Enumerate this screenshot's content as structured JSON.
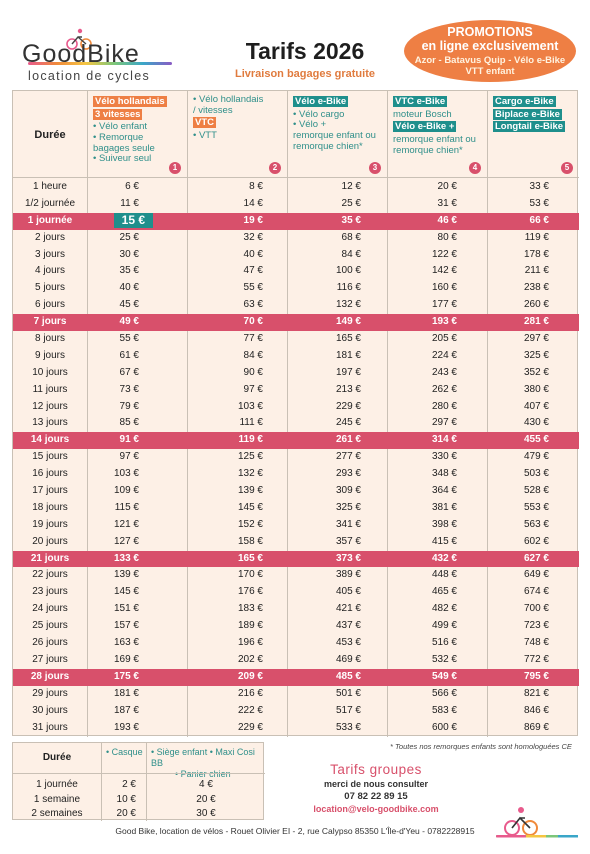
{
  "brand": {
    "name": "GoodBike",
    "tagline": "location de cycles"
  },
  "header": {
    "title": "Tarifs 2026",
    "subtitle": "Livraison bagages gratuite"
  },
  "promo": {
    "line1": "PROMOTIONS",
    "line2": "en ligne exclusivement",
    "line3": "Azor - Batavus Quip - Vélo e-Bike",
    "line4": "VTT enfant"
  },
  "table": {
    "duration_header": "Durée",
    "columns": [
      {
        "num": "1",
        "items": [
          {
            "text": "Vélo hollandais",
            "style": "orange"
          },
          {
            "text": "3 vitesses",
            "style": "orange"
          },
          {
            "text": "• Vélo enfant",
            "style": "plain"
          },
          {
            "text": "• Remorque",
            "style": "plain"
          },
          {
            "text": "bagages seule",
            "style": "plain"
          },
          {
            "text": "• Suiveur seul",
            "style": "plain"
          }
        ]
      },
      {
        "num": "2",
        "items": [
          {
            "text": "",
            "style": "plain"
          },
          {
            "text": "• Vélo hollandais",
            "style": "plain"
          },
          {
            "text": "/ vitesses",
            "style": "plain"
          },
          {
            "text": "VTC",
            "style": "orange"
          },
          {
            "text": "• VTT",
            "style": "plain"
          }
        ]
      },
      {
        "num": "3",
        "items": [
          {
            "text": "Vélo e-Bike",
            "style": "teal"
          },
          {
            "text": "• Vélo cargo",
            "style": "plain"
          },
          {
            "text": "• Vélo +",
            "style": "plain"
          },
          {
            "text": "remorque enfant ou",
            "style": "plain"
          },
          {
            "text": "remorque chien*",
            "style": "plain"
          }
        ]
      },
      {
        "num": "4",
        "items": [
          {
            "text": "VTC e-Bike",
            "style": "teal"
          },
          {
            "text": "moteur Bosch",
            "style": "plain"
          },
          {
            "text": "Vélo e-Bike +",
            "style": "teal"
          },
          {
            "text": "remorque enfant ou",
            "style": "plain"
          },
          {
            "text": "remorque chien*",
            "style": "plain"
          }
        ]
      },
      {
        "num": "5",
        "items": [
          {
            "text": "Cargo e-Bike",
            "style": "teal"
          },
          {
            "text": "Biplace e-Bike",
            "style": "teal"
          },
          {
            "text": "Longtail e-Bike",
            "style": "teal"
          }
        ]
      }
    ],
    "rows": [
      {
        "d": "1 heure",
        "v": [
          "6 €",
          "8 €",
          "12 €",
          "20 €",
          "33 €"
        ],
        "hl": false
      },
      {
        "d": "1/2 journée",
        "v": [
          "11 €",
          "14 €",
          "25 €",
          "31 €",
          "53 €"
        ],
        "hl": false
      },
      {
        "d": "1 journée",
        "v": [
          "15 €",
          "19 €",
          "35 €",
          "46 €",
          "66 €"
        ],
        "hl": true
      },
      {
        "d": "2 jours",
        "v": [
          "25 €",
          "32 €",
          "68 €",
          "80 €",
          "119 €"
        ],
        "hl": false
      },
      {
        "d": "3 jours",
        "v": [
          "30 €",
          "40 €",
          "84 €",
          "122 €",
          "178 €"
        ],
        "hl": false
      },
      {
        "d": "4 jours",
        "v": [
          "35 €",
          "47 €",
          "100 €",
          "142 €",
          "211 €"
        ],
        "hl": false
      },
      {
        "d": "5 jours",
        "v": [
          "40 €",
          "55 €",
          "116 €",
          "160 €",
          "238 €"
        ],
        "hl": false
      },
      {
        "d": "6 jours",
        "v": [
          "45 €",
          "63 €",
          "132 €",
          "177 €",
          "260 €"
        ],
        "hl": false
      },
      {
        "d": "7 jours",
        "v": [
          "49 €",
          "70 €",
          "149 €",
          "193 €",
          "281 €"
        ],
        "hl": true
      },
      {
        "d": "8 jours",
        "v": [
          "55 €",
          "77 €",
          "165 €",
          "205 €",
          "297 €"
        ],
        "hl": false
      },
      {
        "d": "9 jours",
        "v": [
          "61 €",
          "84 €",
          "181 €",
          "224 €",
          "325 €"
        ],
        "hl": false
      },
      {
        "d": "10 jours",
        "v": [
          "67 €",
          "90 €",
          "197 €",
          "243 €",
          "352 €"
        ],
        "hl": false
      },
      {
        "d": "11 jours",
        "v": [
          "73 €",
          "97 €",
          "213 €",
          "262 €",
          "380 €"
        ],
        "hl": false
      },
      {
        "d": "12 jours",
        "v": [
          "79 €",
          "103 €",
          "229 €",
          "280 €",
          "407 €"
        ],
        "hl": false
      },
      {
        "d": "13 jours",
        "v": [
          "85 €",
          "111 €",
          "245 €",
          "297 €",
          "430 €"
        ],
        "hl": false
      },
      {
        "d": "14 jours",
        "v": [
          "91 €",
          "119 €",
          "261 €",
          "314 €",
          "455 €"
        ],
        "hl": true
      },
      {
        "d": "15 jours",
        "v": [
          "97 €",
          "125 €",
          "277 €",
          "330 €",
          "479 €"
        ],
        "hl": false
      },
      {
        "d": "16 jours",
        "v": [
          "103 €",
          "132 €",
          "293 €",
          "348 €",
          "503 €"
        ],
        "hl": false
      },
      {
        "d": "17 jours",
        "v": [
          "109 €",
          "139 €",
          "309 €",
          "364 €",
          "528 €"
        ],
        "hl": false
      },
      {
        "d": "18 jours",
        "v": [
          "115 €",
          "145 €",
          "325 €",
          "381 €",
          "553 €"
        ],
        "hl": false
      },
      {
        "d": "19 jours",
        "v": [
          "121 €",
          "152 €",
          "341 €",
          "398 €",
          "563 €"
        ],
        "hl": false
      },
      {
        "d": "20 jours",
        "v": [
          "127 €",
          "158 €",
          "357 €",
          "415 €",
          "602 €"
        ],
        "hl": false
      },
      {
        "d": "21 jours",
        "v": [
          "133 €",
          "165 €",
          "373 €",
          "432 €",
          "627 €"
        ],
        "hl": true
      },
      {
        "d": "22 jours",
        "v": [
          "139 €",
          "170 €",
          "389 €",
          "448 €",
          "649 €"
        ],
        "hl": false
      },
      {
        "d": "23 jours",
        "v": [
          "145 €",
          "176 €",
          "405 €",
          "465 €",
          "674 €"
        ],
        "hl": false
      },
      {
        "d": "24 jours",
        "v": [
          "151 €",
          "183 €",
          "421 €",
          "482 €",
          "700 €"
        ],
        "hl": false
      },
      {
        "d": "25 jours",
        "v": [
          "157 €",
          "189 €",
          "437 €",
          "499 €",
          "723 €"
        ],
        "hl": false
      },
      {
        "d": "26 jours",
        "v": [
          "163 €",
          "196 €",
          "453 €",
          "516 €",
          "748 €"
        ],
        "hl": false
      },
      {
        "d": "27 jours",
        "v": [
          "169 €",
          "202 €",
          "469 €",
          "532 €",
          "772 €"
        ],
        "hl": false
      },
      {
        "d": "28 jours",
        "v": [
          "175 €",
          "209 €",
          "485 €",
          "549 €",
          "795 €"
        ],
        "hl": true
      },
      {
        "d": "29 jours",
        "v": [
          "181 €",
          "216 €",
          "501 €",
          "566 €",
          "821 €"
        ],
        "hl": false
      },
      {
        "d": "30 jours",
        "v": [
          "187 €",
          "222 €",
          "517 €",
          "583 €",
          "846 €"
        ],
        "hl": false
      },
      {
        "d": "31 jours",
        "v": [
          "193 €",
          "229 €",
          "533 €",
          "600 €",
          "869 €"
        ],
        "hl": false
      }
    ]
  },
  "note": "* Toutes nos remorques enfants sont homologuées CE",
  "accessories": {
    "duration_header": "Durée",
    "h1": "• Casque",
    "h2a": "• Siège enfant • Maxi Cosi BB",
    "h2b": "• Panier chien",
    "rows": [
      {
        "d": "1 journée",
        "a": "2 €",
        "b": "4 €"
      },
      {
        "d": "1 semaine",
        "a": "10 €",
        "b": "20 €"
      },
      {
        "d": "2 semaines",
        "a": "20 €",
        "b": "30 €"
      }
    ]
  },
  "groupes": {
    "title": "Tarifs groupes",
    "sub": "merci de nous consulter",
    "tel": "07 82 22 89 15",
    "mail": "location@velo-goodbike.com"
  },
  "footer": "Good Bike, location de vélos - Rouet Olivier EI - 2, rue Calypso 85350 L'Île-d'Yeu - 0782228915",
  "colors": {
    "accent_orange": "#ee7f44",
    "accent_pink": "#d8506b",
    "accent_teal": "#1f8f8c",
    "table_bg": "#fdf0e6"
  }
}
